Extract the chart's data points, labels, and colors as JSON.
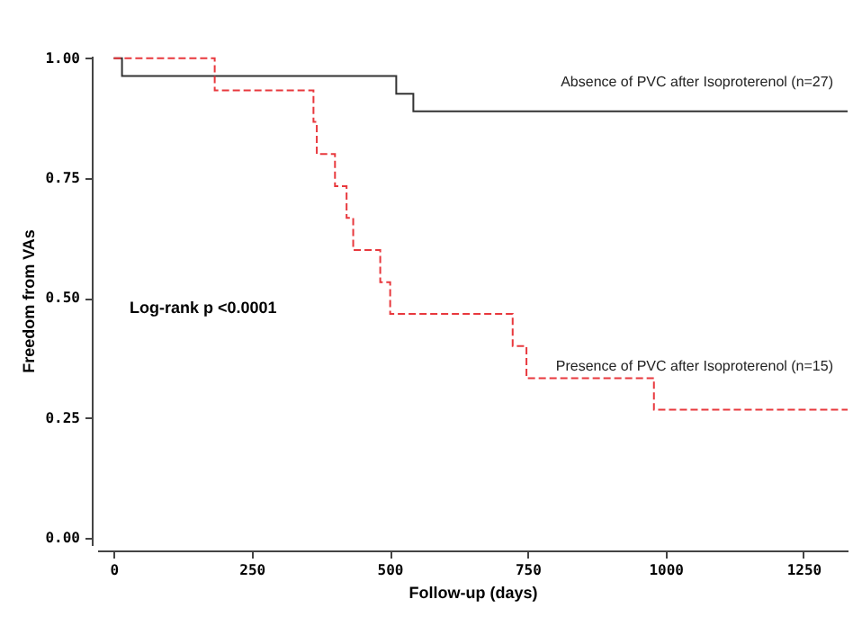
{
  "chart_data": {
    "type": "step",
    "xlabel": "Follow-up (days)",
    "ylabel": "Freedom from VAs",
    "annotations": [
      "Log-rank p <0.0001"
    ],
    "xlim": [
      -30,
      1330
    ],
    "xticks": [
      0,
      250,
      500,
      750,
      1000,
      1250
    ],
    "ylim": [
      -0.015,
      1.005
    ],
    "yticks": [
      {
        "value": 0,
        "label": "0.00"
      },
      {
        "value": 0.25,
        "label": "0.25"
      },
      {
        "value": 0.5,
        "label": "0.50"
      },
      {
        "value": 0.75,
        "label": "0.75"
      },
      {
        "value": 1,
        "label": "1.00"
      }
    ],
    "grid": false,
    "legend": false,
    "marker": "none",
    "series": [
      {
        "name": "Absence of PVC after Isoproterenol (n=27)",
        "color": "#333333",
        "line_style": "solid",
        "x": [
          0,
          15,
          512,
          543,
          1330
        ],
        "values": [
          1,
          0.963,
          0.926,
          0.889,
          0.889
        ]
      },
      {
        "name": "Presence of PVC after Isoproterenol (n=15)",
        "color": "#e8383d",
        "line_style": "dashed",
        "x": [
          0,
          183,
          362,
          368,
          401,
          422,
          434,
          483,
          501,
          723,
          748,
          979,
          1330
        ],
        "values": [
          1,
          0.933,
          0.867,
          0.8,
          0.733,
          0.667,
          0.6,
          0.533,
          0.467,
          0.4,
          0.333,
          0.267,
          0.267
        ]
      }
    ]
  }
}
